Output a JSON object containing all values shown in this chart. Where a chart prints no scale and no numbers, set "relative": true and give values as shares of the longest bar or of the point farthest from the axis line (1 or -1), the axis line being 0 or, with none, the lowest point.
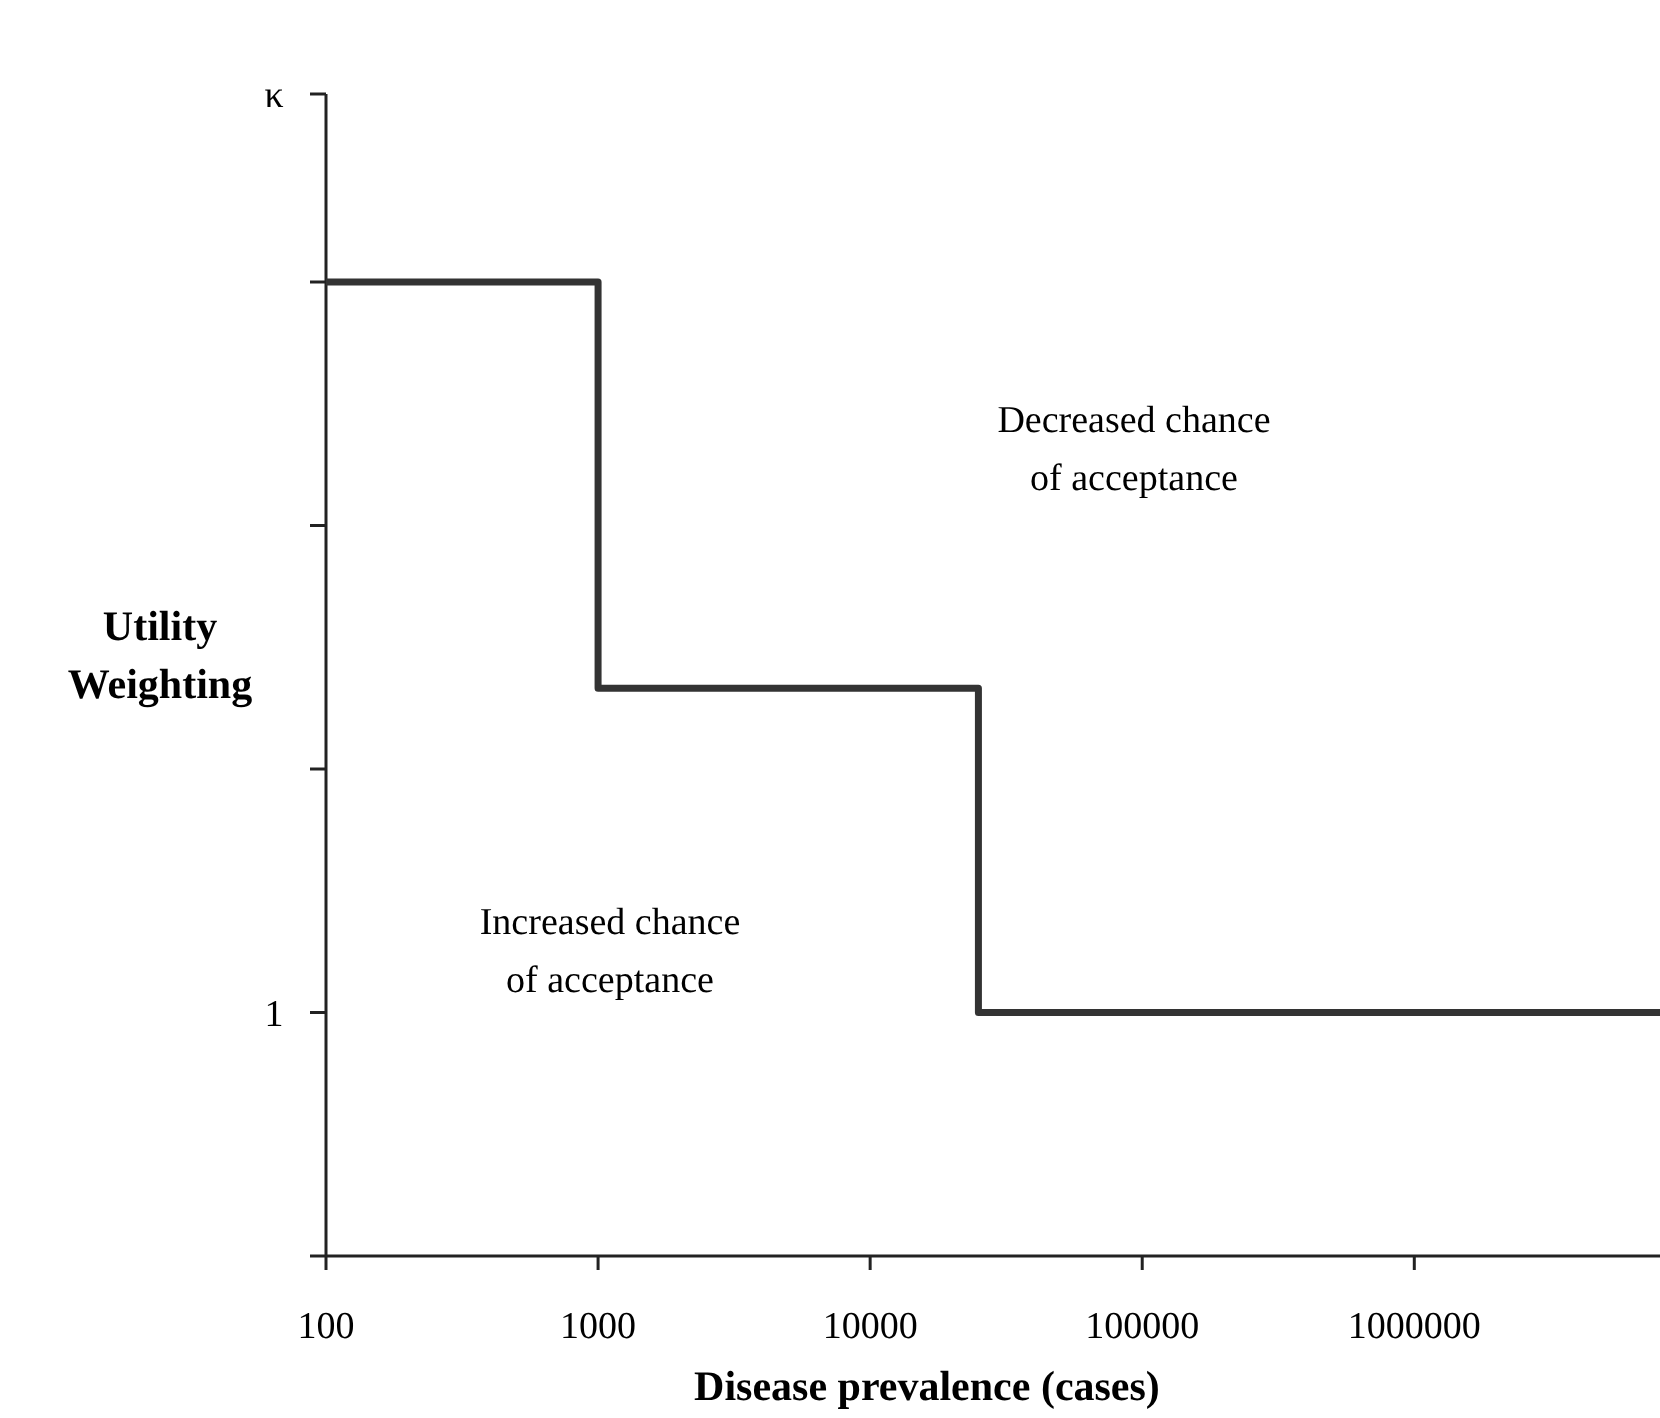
{
  "chart_data": {
    "type": "step",
    "xlabel": "Disease prevalence (cases)",
    "ylabel": "Utility\nWeighting",
    "x": [
      100,
      1000,
      25000,
      8000000
    ],
    "series": [
      {
        "color": "#333333",
        "values": [
          1,
          0.583,
          0.25,
          0.25
        ]
      }
    ],
    "relative": true,
    "log": "x",
    "xlim": [
      100,
      8000000
    ],
    "xticks": [
      100,
      1000,
      10000,
      100000,
      1000000
    ],
    "annotations": [
      "Decreased chance\nof acceptance",
      "Increased chance\nof acceptance",
      "1",
      "κ"
    ],
    "grid": false,
    "marker": "none",
    "line_style": "solid"
  }
}
